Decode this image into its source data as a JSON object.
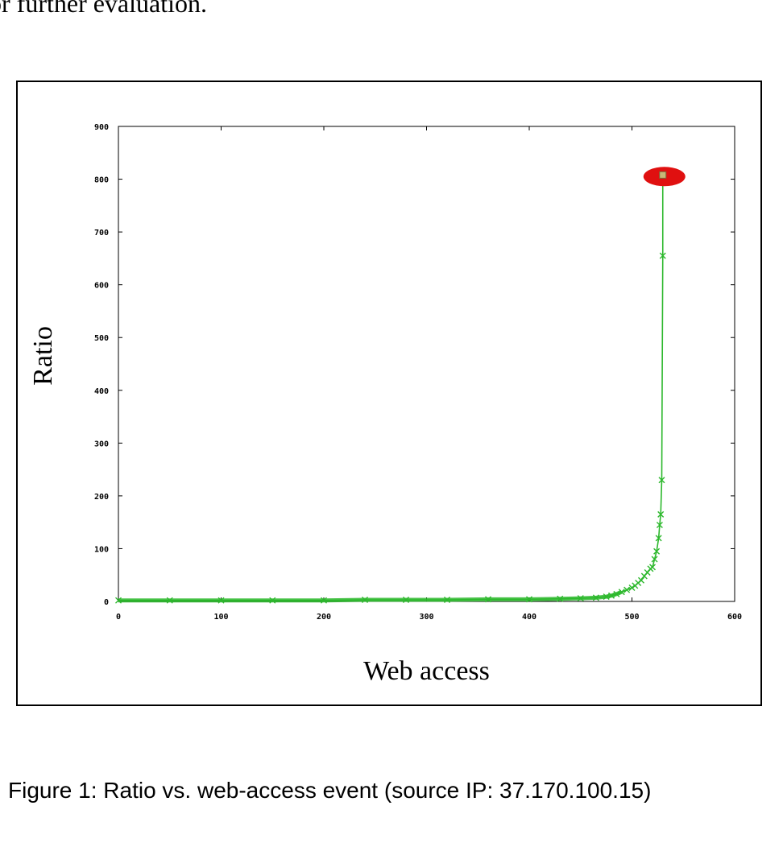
{
  "top_text": "or further evaluation.",
  "caption": "Figure 1: Ratio vs. web-access event (source IP: 37.170.100.15)",
  "chart_data": {
    "type": "line",
    "title": "",
    "xlabel": "Web access",
    "ylabel": "Ratio",
    "xlim": [
      0,
      600
    ],
    "ylim": [
      0,
      900
    ],
    "x_ticks": [
      0,
      100,
      200,
      300,
      400,
      500,
      600
    ],
    "y_ticks": [
      0,
      100,
      200,
      300,
      400,
      500,
      600,
      700,
      800,
      900
    ],
    "grid": false,
    "legend": "none",
    "series": [
      {
        "color": "#2db82d",
        "marker": "x",
        "x": [
          0,
          50,
          100,
          150,
          200,
          240,
          280,
          320,
          360,
          400,
          430,
          450,
          465,
          475,
          480,
          485,
          490,
          495,
          500,
          503,
          506,
          509,
          512,
          515,
          518,
          520,
          522,
          524,
          526,
          527,
          528,
          529,
          530
        ],
        "y": [
          2,
          2,
          2,
          2,
          2,
          3,
          3,
          3,
          4,
          4,
          5,
          6,
          7,
          9,
          11,
          14,
          18,
          22,
          26,
          30,
          35,
          40,
          48,
          55,
          62,
          65,
          80,
          95,
          120,
          145,
          165,
          230,
          655
        ]
      }
    ],
    "highlight": {
      "x": 530,
      "y": 808,
      "color": "#e01010",
      "marker_color": "#c8b878"
    }
  }
}
